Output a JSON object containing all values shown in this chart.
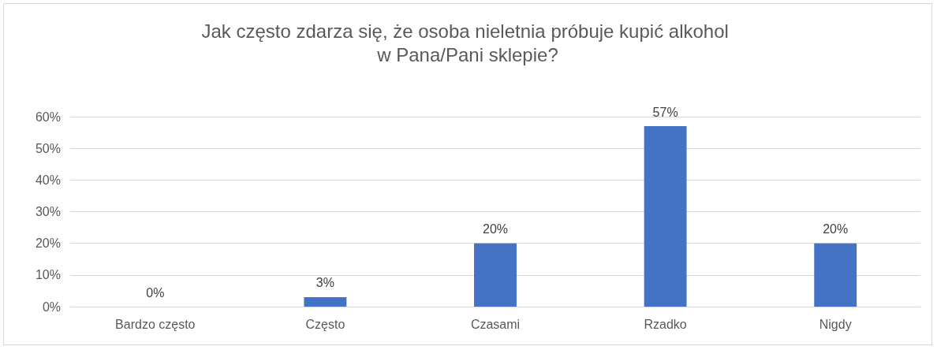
{
  "chart_data": {
    "type": "bar",
    "title": "Jak często zdarza się, że osoba nieletnia próbuje kupić alkohol w Pana/Pani sklepie?",
    "categories": [
      "Bardzo często",
      "Często",
      "Czasami",
      "Rzadko",
      "Nigdy"
    ],
    "values": [
      0,
      3,
      20,
      57,
      20
    ],
    "value_labels": [
      "0%",
      "3%",
      "20%",
      "57%",
      "20%"
    ],
    "color": "#4472c4",
    "ylim": [
      0,
      60
    ],
    "yticks": [
      {
        "value": 0,
        "label": "0%"
      },
      {
        "value": 10,
        "label": "10%"
      },
      {
        "value": 20,
        "label": "20%"
      },
      {
        "value": 30,
        "label": "30%"
      },
      {
        "value": 40,
        "label": "40%"
      },
      {
        "value": 50,
        "label": "50%"
      },
      {
        "value": 60,
        "label": "60%"
      }
    ],
    "grid": "y"
  }
}
